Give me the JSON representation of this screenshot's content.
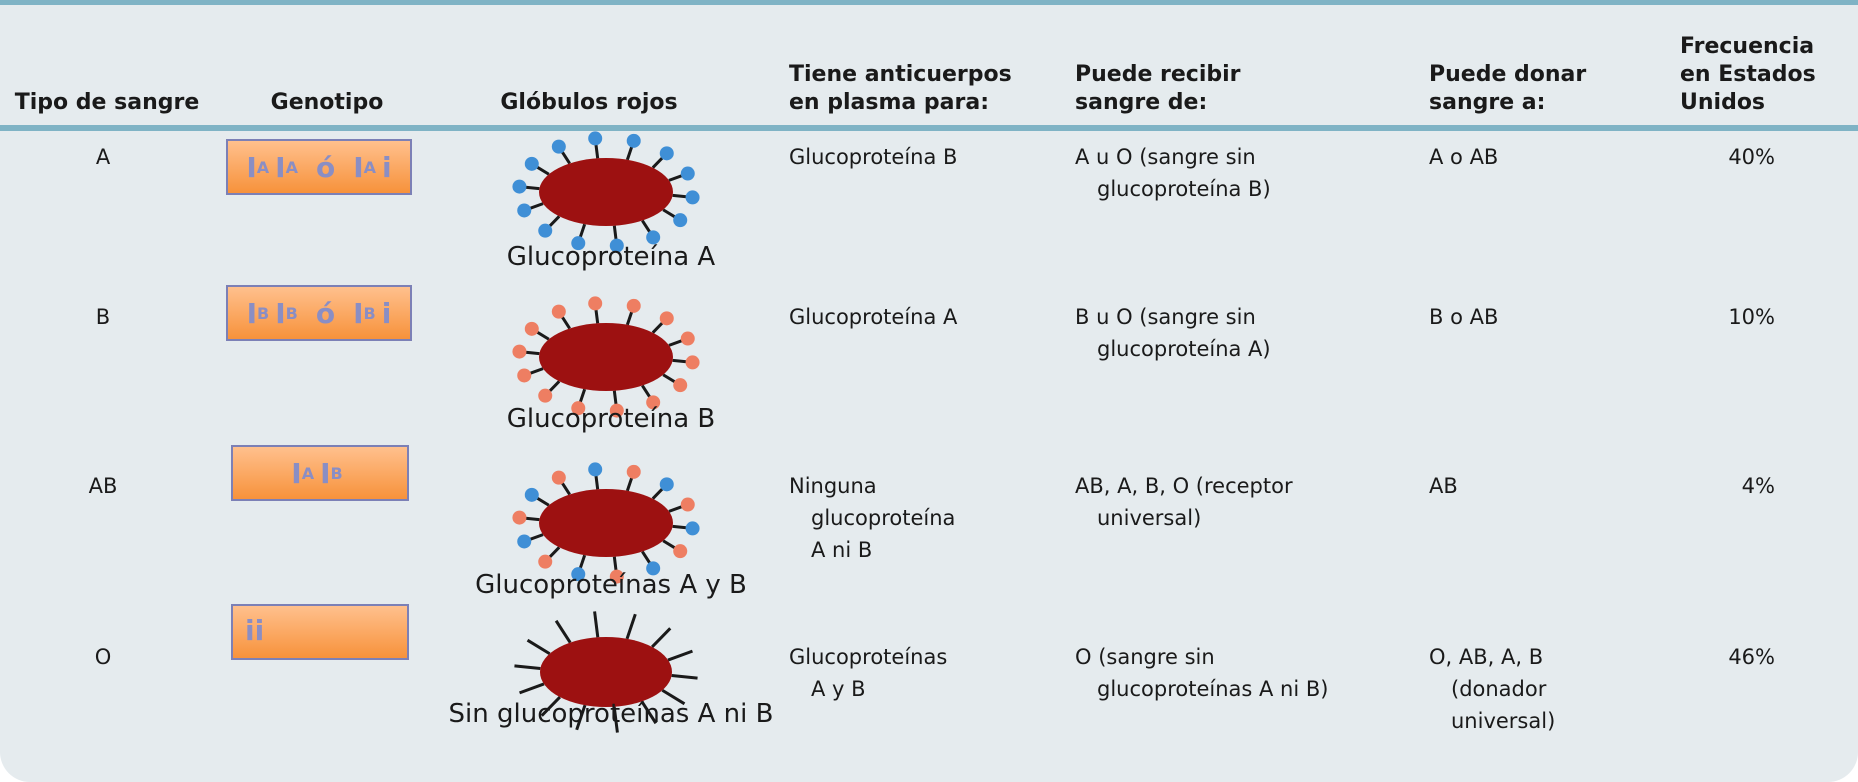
{
  "table": {
    "headers": [
      [
        "Tipo de sangre"
      ],
      [
        "Genotipo"
      ],
      [
        "Glóbulos rojos"
      ],
      [
        "Tiene anticuerpos",
        "en plasma para:"
      ],
      [
        "Puede recibir",
        "sangre de:"
      ],
      [
        "Puede donar",
        "sangre a:"
      ],
      [
        "Frecuencia",
        "en Estados",
        "Unidos"
      ]
    ],
    "rows": [
      {
        "type": "A",
        "genotype": [
          [
            "I",
            "A"
          ],
          [
            "I",
            "A"
          ],
          "ó",
          [
            "I",
            "A"
          ],
          "i"
        ],
        "cells": "Glucoproteína A",
        "antibodies": [
          "Glucoproteína B"
        ],
        "receives": [
          "A u O (sangre sin",
          "glucoproteína B)"
        ],
        "donates": [
          "A o AB"
        ],
        "frequency": "40%"
      },
      {
        "type": "B",
        "genotype": [
          [
            "I",
            "B"
          ],
          [
            "I",
            "B"
          ],
          "ó",
          [
            "I",
            "B"
          ],
          "i"
        ],
        "cells": "Glucoproteína B",
        "antibodies": [
          "Glucoproteína A"
        ],
        "receives": [
          "B u O (sangre sin",
          "glucoproteína A)"
        ],
        "donates": [
          "B o AB"
        ],
        "frequency": "10%"
      },
      {
        "type": "AB",
        "genotype": [
          [
            "I",
            "A"
          ],
          [
            "I",
            "B"
          ]
        ],
        "cells": "Glucoproteínas A y B",
        "antibodies": [
          "Ninguna",
          "glucoproteína",
          "A ni B"
        ],
        "receives": [
          "AB, A, B, O (receptor",
          "universal)"
        ],
        "donates": [
          "AB"
        ],
        "frequency": "4%"
      },
      {
        "type": "O",
        "genotype": [
          "ii"
        ],
        "cells": "Sin glucoproteínas A ni B",
        "antibodies": [
          "Glucoproteínas",
          "A y B"
        ],
        "receives": [
          "O (sangre sin",
          "glucoproteínas A ni B)"
        ],
        "donates": [
          "O, AB, A, B",
          "(donador",
          "universal)"
        ],
        "frequency": "46%"
      }
    ]
  }
}
